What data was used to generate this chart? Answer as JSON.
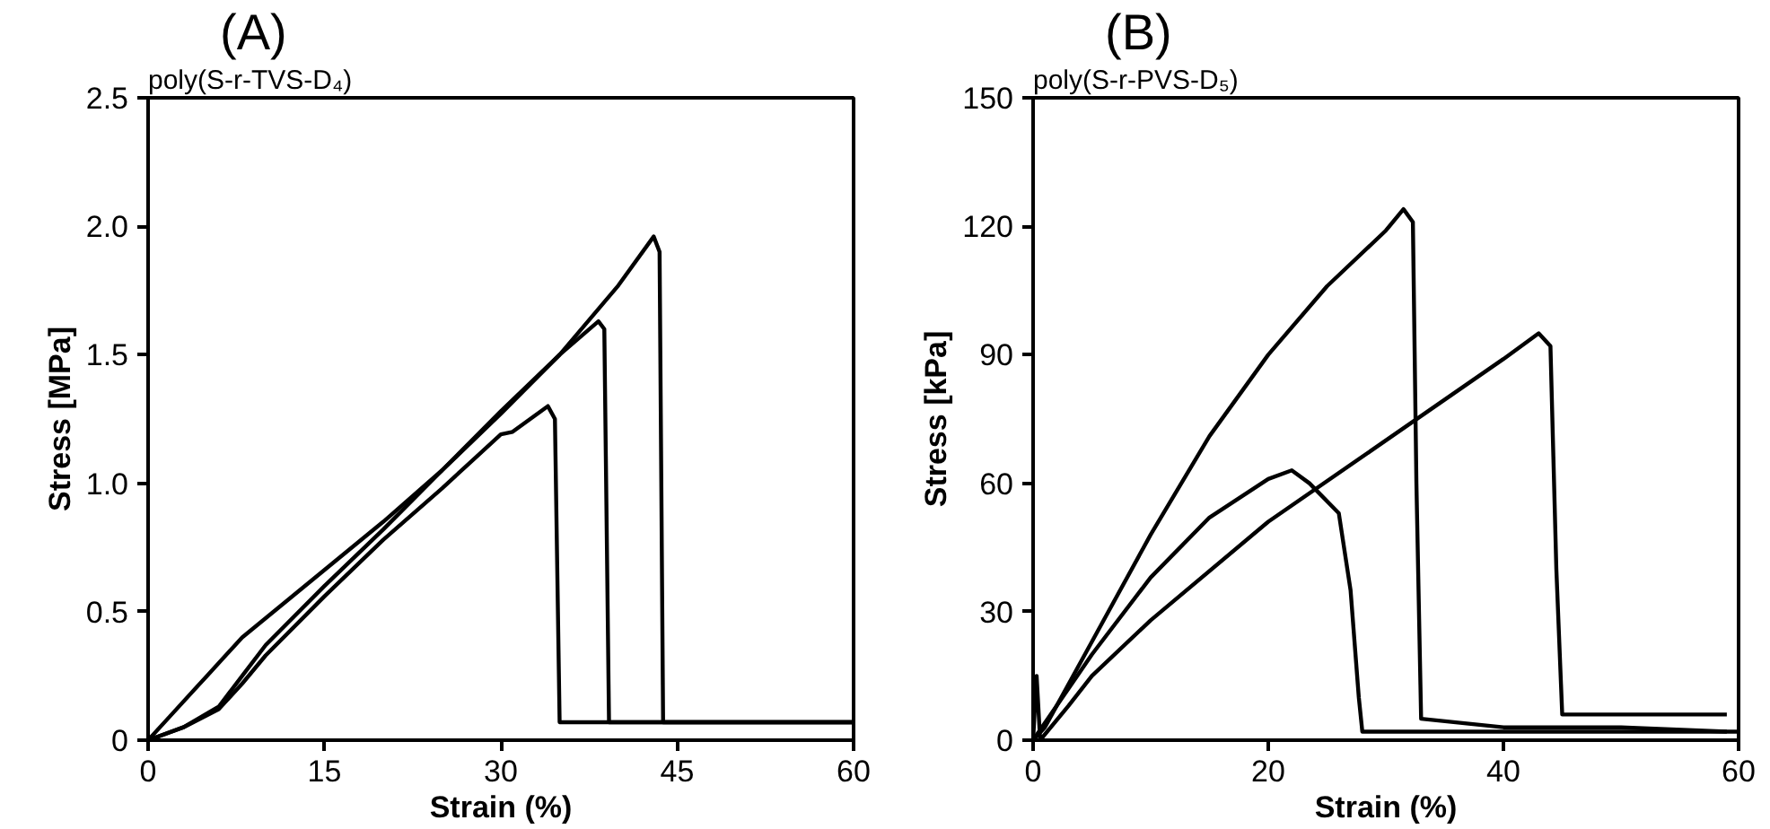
{
  "chart_data": [
    {
      "type": "line",
      "title": "(A)",
      "subtitle": "poly(S-r-TVS-D₄)",
      "xlabel": "Strain (%)",
      "ylabel": "Stress [MPa]",
      "xlim": [
        0,
        60
      ],
      "xticks": [
        0,
        15,
        30,
        45,
        60
      ],
      "ylim": [
        0,
        2.5
      ],
      "yticks": [
        0,
        0.5,
        {
          "value": 1,
          "label": "1.0"
        },
        1.5,
        {
          "value": 2,
          "label": "2.0"
        },
        2.5
      ],
      "grid": false,
      "marker": "none",
      "line_style": "solid",
      "series": [
        {
          "color": "#000000",
          "x": [
            0,
            2,
            5,
            8,
            12,
            16,
            20,
            25,
            30,
            35,
            40,
            43,
            43.5,
            43.8,
            44,
            60
          ],
          "values": [
            0,
            0.1,
            0.25,
            0.4,
            0.55,
            0.7,
            0.85,
            1.05,
            1.27,
            1.5,
            1.77,
            1.96,
            1.9,
            0.07,
            0.07,
            0.07
          ]
        },
        {
          "color": "#000000",
          "x": [
            0,
            3,
            6,
            8,
            10,
            15,
            20,
            25,
            30,
            35,
            38.3,
            38.8,
            39.2,
            60
          ],
          "values": [
            0,
            0.05,
            0.13,
            0.25,
            0.37,
            0.6,
            0.82,
            1.05,
            1.28,
            1.5,
            1.63,
            1.6,
            0.07,
            0.07
          ]
        },
        {
          "color": "#000000",
          "x": [
            0,
            3,
            6,
            8,
            10,
            15,
            20,
            25,
            30,
            31,
            34,
            34.6,
            35,
            60
          ],
          "values": [
            0,
            0.05,
            0.12,
            0.22,
            0.33,
            0.56,
            0.78,
            0.98,
            1.19,
            1.2,
            1.3,
            1.25,
            0.07,
            0.07
          ]
        }
      ]
    },
    {
      "type": "line",
      "title": "(B)",
      "subtitle": "poly(S-r-PVS-D₅)",
      "xlabel": "Strain (%)",
      "ylabel": "Stress [kPa]",
      "xlim": [
        0,
        60
      ],
      "xticks": [
        0,
        20,
        40,
        60
      ],
      "ylim": [
        0,
        150
      ],
      "yticks": [
        0,
        30,
        60,
        90,
        120,
        150
      ],
      "grid": false,
      "marker": "none",
      "line_style": "solid",
      "series": [
        {
          "color": "#000000",
          "x": [
            0,
            1,
            5,
            10,
            15,
            20,
            25,
            30,
            31.5,
            32.3,
            32.6,
            33,
            40,
            50,
            59
          ],
          "values": [
            0,
            3,
            23,
            48,
            71,
            90,
            106,
            119,
            124,
            121,
            60,
            5,
            3,
            3,
            2
          ]
        },
        {
          "color": "#000000",
          "x": [
            0,
            2,
            5,
            10,
            15,
            20,
            22,
            23.5,
            26,
            27,
            27.7,
            28,
            35,
            45,
            60
          ],
          "values": [
            0,
            8,
            20,
            38,
            52,
            61,
            63,
            60,
            53,
            35,
            10,
            2,
            2,
            2,
            2
          ]
        },
        {
          "color": "#000000",
          "x": [
            0,
            0.3,
            0.6,
            3,
            5,
            10,
            20,
            30,
            40,
            43,
            44,
            44.5,
            45,
            50,
            55,
            59
          ],
          "values": [
            0,
            15,
            0,
            8,
            15,
            28,
            51,
            70,
            89,
            95,
            92,
            40,
            6,
            6,
            6,
            6
          ]
        }
      ]
    }
  ]
}
